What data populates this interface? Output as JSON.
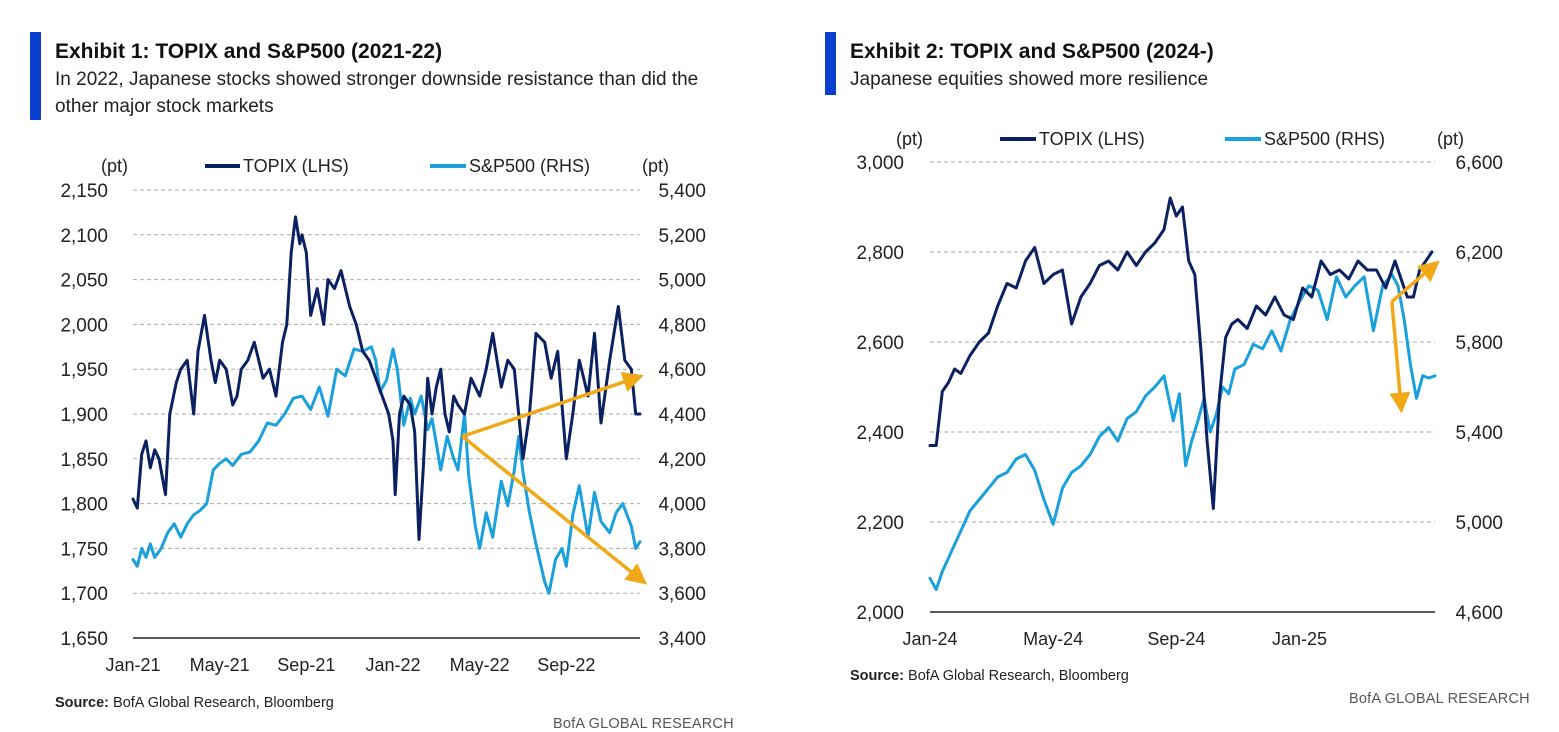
{
  "exhibit1": {
    "title": "Exhibit 1: TOPIX and S&P500 (2021-22)",
    "subtitle": "In 2022, Japanese stocks showed stronger downside resistance than did the other major stock markets",
    "source_label": "Source:",
    "source_text": " BofA Global Research, Bloomberg",
    "brand": "BofA GLOBAL RESEARCH"
  },
  "exhibit2": {
    "title": "Exhibit 2: TOPIX and S&P500 (2024-)",
    "subtitle": "Japanese equities showed more resilience",
    "source_label": "Source:",
    "source_text": " BofA Global Research, Bloomberg",
    "brand": "BofA GLOBAL RESEARCH"
  },
  "colors": {
    "topix": "#0b2161",
    "sp500": "#1aa0dc",
    "arrow": "#f0a818",
    "accent": "#0a3fcf",
    "grid": "#aaaaaa"
  },
  "chart_data": [
    {
      "type": "line",
      "title": "TOPIX and S&P500 (2021-22)",
      "left_unit": "(pt)",
      "right_unit": "(pt)",
      "left_ylim": [
        1650,
        2150
      ],
      "right_ylim": [
        3400,
        5400
      ],
      "left_ticks": [
        "2,150",
        "2,100",
        "2,050",
        "2,000",
        "1,950",
        "1,900",
        "1,850",
        "1,800",
        "1,750",
        "1,700",
        "1,650"
      ],
      "right_ticks": [
        "5,400",
        "5,200",
        "5,000",
        "4,800",
        "4,600",
        "4,400",
        "4,200",
        "4,000",
        "3,800",
        "3,600",
        "3,400"
      ],
      "x_labels": [
        "Jan-21",
        "May-21",
        "Sep-21",
        "Jan-22",
        "May-22",
        "Sep-22"
      ],
      "x_range": [
        0,
        23.4
      ],
      "legend": [
        "TOPIX (LHS)",
        "S&P500 (RHS)"
      ],
      "series": [
        {
          "name": "TOPIX (LHS)",
          "axis": "left",
          "x": [
            0,
            0.2,
            0.4,
            0.6,
            0.8,
            1.0,
            1.2,
            1.5,
            1.7,
            2.0,
            2.2,
            2.5,
            2.8,
            3.0,
            3.3,
            3.6,
            3.8,
            4.0,
            4.3,
            4.6,
            4.8,
            5.0,
            5.3,
            5.6,
            5.8,
            6.0,
            6.3,
            6.6,
            6.9,
            7.1,
            7.3,
            7.5,
            7.7,
            7.8,
            8.0,
            8.2,
            8.5,
            8.8,
            9.0,
            9.3,
            9.6,
            10.0,
            10.3,
            10.6,
            10.9,
            11.2,
            11.5,
            11.8,
            12.0,
            12.1,
            12.3,
            12.5,
            12.8,
            13.0,
            13.2,
            13.4,
            13.6,
            13.8,
            14.0,
            14.2,
            14.4,
            14.6,
            14.8,
            15.0,
            15.3,
            15.6,
            16.0,
            16.3,
            16.6,
            17.0,
            17.3,
            17.6,
            18.0,
            18.3,
            18.6,
            19.0,
            19.3,
            19.6,
            20.0,
            20.3,
            20.6,
            21.0,
            21.3,
            21.6,
            22.0,
            22.4,
            22.7,
            23.0,
            23.2,
            23.4
          ],
          "values": [
            1805,
            1795,
            1855,
            1870,
            1840,
            1860,
            1850,
            1810,
            1900,
            1935,
            1950,
            1960,
            1900,
            1970,
            2010,
            1960,
            1935,
            1960,
            1950,
            1910,
            1920,
            1950,
            1960,
            1980,
            1960,
            1940,
            1950,
            1920,
            1980,
            2000,
            2080,
            2120,
            2090,
            2100,
            2080,
            2010,
            2040,
            2000,
            2050,
            2040,
            2060,
            2020,
            2000,
            1970,
            1960,
            1940,
            1920,
            1900,
            1870,
            1810,
            1900,
            1920,
            1910,
            1880,
            1760,
            1840,
            1940,
            1900,
            1930,
            1950,
            1900,
            1880,
            1920,
            1910,
            1900,
            1940,
            1920,
            1950,
            1990,
            1930,
            1960,
            1950,
            1850,
            1900,
            1990,
            1980,
            1940,
            1970,
            1850,
            1900,
            1960,
            1920,
            1990,
            1890,
            1960,
            2020,
            1960,
            1950,
            1900,
            1900
          ]
        },
        {
          "name": "S&P500 (RHS)",
          "axis": "right",
          "x": [
            0,
            0.2,
            0.4,
            0.6,
            0.8,
            1.0,
            1.3,
            1.6,
            1.9,
            2.2,
            2.5,
            2.8,
            3.1,
            3.4,
            3.7,
            4.0,
            4.3,
            4.6,
            5.0,
            5.4,
            5.8,
            6.2,
            6.6,
            7.0,
            7.4,
            7.8,
            8.2,
            8.6,
            9.0,
            9.4,
            9.8,
            10.2,
            10.6,
            11.0,
            11.2,
            11.4,
            11.7,
            12.0,
            12.2,
            12.5,
            12.8,
            13.0,
            13.3,
            13.6,
            13.8,
            14.0,
            14.2,
            14.5,
            14.8,
            15.0,
            15.3,
            15.5,
            15.8,
            16.0,
            16.3,
            16.6,
            17.0,
            17.3,
            17.6,
            17.8,
            18.0,
            18.3,
            18.6,
            19.0,
            19.2,
            19.5,
            19.8,
            20.0,
            20.3,
            20.6,
            21.0,
            21.3,
            21.6,
            22.0,
            22.3,
            22.6,
            23.0,
            23.2,
            23.4
          ],
          "values": [
            3750,
            3720,
            3800,
            3760,
            3820,
            3760,
            3800,
            3870,
            3910,
            3850,
            3910,
            3950,
            3970,
            4000,
            4150,
            4180,
            4200,
            4170,
            4220,
            4230,
            4280,
            4360,
            4350,
            4400,
            4470,
            4480,
            4420,
            4520,
            4390,
            4600,
            4570,
            4690,
            4680,
            4700,
            4640,
            4500,
            4550,
            4690,
            4600,
            4350,
            4470,
            4400,
            4480,
            4330,
            4380,
            4270,
            4150,
            4300,
            4200,
            4150,
            4400,
            4120,
            3900,
            3800,
            3960,
            3850,
            4100,
            3990,
            4150,
            4300,
            4140,
            3960,
            3820,
            3650,
            3600,
            3750,
            3800,
            3720,
            3950,
            4080,
            3850,
            4050,
            3920,
            3870,
            3960,
            4000,
            3900,
            3800,
            3830
          ]
        }
      ],
      "annotations": [
        {
          "type": "arrow",
          "from": [
            15.2,
            1875
          ],
          "to": [
            23.3,
            1941
          ],
          "axis": "left"
        },
        {
          "type": "arrow",
          "from": [
            15.2,
            1875
          ],
          "to": [
            23.5,
            1714
          ],
          "axis": "left"
        }
      ]
    },
    {
      "type": "line",
      "title": "TOPIX and S&P500 (2024-)",
      "left_unit": "(pt)",
      "right_unit": "(pt)",
      "left_ylim": [
        2000,
        3000
      ],
      "right_ylim": [
        4600,
        6600
      ],
      "left_ticks": [
        "3,000",
        "2,800",
        "2,600",
        "2,400",
        "2,200",
        "2,000"
      ],
      "right_ticks": [
        "6,600",
        "6,200",
        "5,800",
        "5,400",
        "5,000",
        "4,600"
      ],
      "x_labels": [
        "Jan-24",
        "May-24",
        "Sep-24",
        "Jan-25"
      ],
      "x_range": [
        0,
        16.4
      ],
      "legend": [
        "TOPIX (LHS)",
        "S&P500 (RHS)"
      ],
      "series": [
        {
          "name": "TOPIX (LHS)",
          "axis": "left",
          "x": [
            0,
            0.2,
            0.4,
            0.6,
            0.8,
            1.0,
            1.3,
            1.6,
            1.9,
            2.2,
            2.5,
            2.8,
            3.1,
            3.4,
            3.7,
            4.0,
            4.3,
            4.6,
            4.9,
            5.2,
            5.5,
            5.8,
            6.1,
            6.4,
            6.7,
            7.0,
            7.3,
            7.6,
            7.8,
            8.0,
            8.2,
            8.4,
            8.6,
            8.8,
            9.0,
            9.2,
            9.4,
            9.6,
            9.8,
            10.0,
            10.3,
            10.6,
            10.9,
            11.2,
            11.5,
            11.8,
            12.1,
            12.4,
            12.7,
            13.0,
            13.3,
            13.6,
            13.9,
            14.2,
            14.5,
            14.8,
            15.1,
            15.3,
            15.5,
            15.7,
            15.9,
            16.1,
            16.3
          ],
          "values": [
            2370,
            2370,
            2490,
            2510,
            2540,
            2530,
            2570,
            2600,
            2620,
            2680,
            2730,
            2720,
            2780,
            2810,
            2730,
            2750,
            2760,
            2640,
            2700,
            2730,
            2770,
            2780,
            2760,
            2800,
            2770,
            2800,
            2820,
            2850,
            2920,
            2880,
            2900,
            2780,
            2750,
            2580,
            2380,
            2230,
            2480,
            2610,
            2640,
            2650,
            2630,
            2680,
            2660,
            2700,
            2660,
            2650,
            2720,
            2700,
            2780,
            2750,
            2760,
            2740,
            2780,
            2760,
            2760,
            2720,
            2780,
            2740,
            2700,
            2700,
            2760,
            2780,
            2800
          ]
        },
        {
          "name": "S&P500 (RHS)",
          "axis": "right",
          "x": [
            0,
            0.2,
            0.4,
            0.6,
            0.8,
            1.0,
            1.3,
            1.6,
            1.9,
            2.2,
            2.5,
            2.8,
            3.1,
            3.4,
            3.7,
            4.0,
            4.3,
            4.6,
            4.9,
            5.2,
            5.5,
            5.8,
            6.1,
            6.4,
            6.7,
            7.0,
            7.3,
            7.6,
            7.9,
            8.1,
            8.3,
            8.5,
            8.7,
            8.9,
            9.1,
            9.3,
            9.5,
            9.7,
            9.9,
            10.2,
            10.5,
            10.8,
            11.1,
            11.4,
            11.7,
            12.0,
            12.3,
            12.6,
            12.9,
            13.2,
            13.5,
            13.8,
            14.1,
            14.4,
            14.7,
            15.0,
            15.2,
            15.4,
            15.6,
            15.8,
            16.0,
            16.2,
            16.4
          ],
          "values": [
            4750,
            4700,
            4780,
            4840,
            4900,
            4960,
            5050,
            5100,
            5150,
            5200,
            5220,
            5280,
            5300,
            5230,
            5100,
            4990,
            5150,
            5220,
            5250,
            5300,
            5380,
            5420,
            5360,
            5460,
            5490,
            5560,
            5600,
            5650,
            5450,
            5570,
            5250,
            5360,
            5450,
            5550,
            5400,
            5480,
            5600,
            5570,
            5680,
            5700,
            5790,
            5770,
            5850,
            5760,
            5900,
            5980,
            6050,
            6030,
            5900,
            6090,
            6000,
            6050,
            6090,
            5850,
            6050,
            6100,
            6050,
            5900,
            5700,
            5550,
            5650,
            5640,
            5650
          ]
        }
      ],
      "annotations": [
        {
          "type": "arrow",
          "from": [
            15.0,
            2690
          ],
          "to": [
            16.4,
            2772
          ],
          "axis": "left"
        },
        {
          "type": "arrow",
          "from": [
            15.0,
            2690
          ],
          "to": [
            15.3,
            2455
          ],
          "axis": "left"
        }
      ]
    }
  ]
}
